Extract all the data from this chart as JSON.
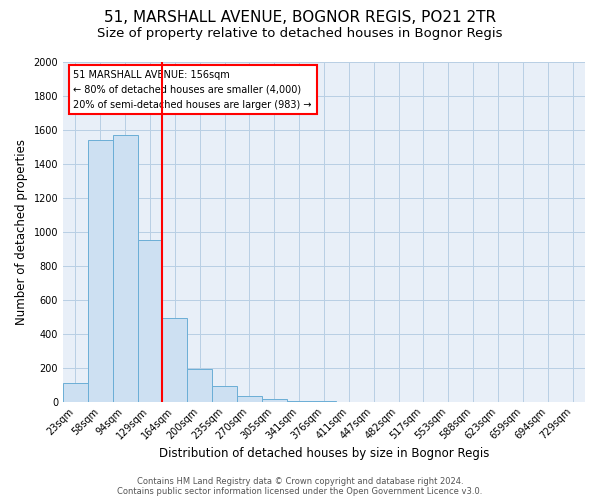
{
  "title": "51, MARSHALL AVENUE, BOGNOR REGIS, PO21 2TR",
  "subtitle": "Size of property relative to detached houses in Bognor Regis",
  "xlabel": "Distribution of detached houses by size in Bognor Regis",
  "ylabel": "Number of detached properties",
  "footer_line1": "Contains HM Land Registry data © Crown copyright and database right 2024.",
  "footer_line2": "Contains public sector information licensed under the Open Government Licence v3.0.",
  "bar_labels": [
    "23sqm",
    "58sqm",
    "94sqm",
    "129sqm",
    "164sqm",
    "200sqm",
    "235sqm",
    "270sqm",
    "305sqm",
    "341sqm",
    "376sqm",
    "411sqm",
    "447sqm",
    "482sqm",
    "517sqm",
    "553sqm",
    "588sqm",
    "623sqm",
    "659sqm",
    "694sqm",
    "729sqm"
  ],
  "bar_values": [
    110,
    1540,
    1565,
    950,
    490,
    190,
    95,
    35,
    15,
    5,
    2,
    0,
    0,
    0,
    0,
    0,
    0,
    0,
    0,
    0,
    0
  ],
  "bar_color": "#cde0f2",
  "bar_edge_color": "#6baed6",
  "vline_color": "red",
  "annotation_line1": "51 MARSHALL AVENUE: 156sqm",
  "annotation_line2": "← 80% of detached houses are smaller (4,000)",
  "annotation_line3": "20% of semi-detached houses are larger (983) →",
  "annotation_box_edge": "red",
  "ylim": [
    0,
    2000
  ],
  "yticks": [
    0,
    200,
    400,
    600,
    800,
    1000,
    1200,
    1400,
    1600,
    1800,
    2000
  ],
  "grid_color": "#b8cfe4",
  "bg_color": "#e8eff8",
  "title_fontsize": 11,
  "subtitle_fontsize": 9.5,
  "ylabel_fontsize": 8.5,
  "xlabel_fontsize": 8.5,
  "tick_fontsize": 7,
  "footer_fontsize": 6
}
